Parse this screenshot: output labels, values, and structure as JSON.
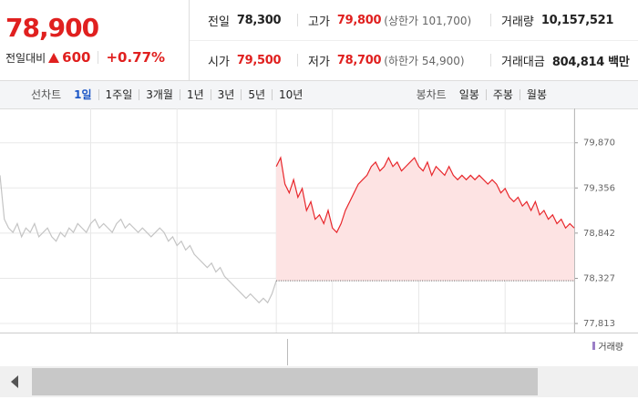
{
  "header": {
    "price": "78,900",
    "change_label": "전일대비",
    "change": "600",
    "change_rate": "+0.77%"
  },
  "summary": [
    {
      "label": "전일",
      "value": "78,300"
    },
    {
      "label": "고가",
      "value": "79,800",
      "note": "(상한가 101,700)"
    },
    {
      "label": "거래량",
      "value": "10,157,521"
    },
    {
      "label": "시가",
      "value": "79,500"
    },
    {
      "label": "저가",
      "value": "78,700",
      "note": "(하한가 54,900)"
    },
    {
      "label": "거래대금",
      "value": "804,814 백만"
    }
  ],
  "tabs": {
    "line_label": "선차트",
    "periods": [
      "1일",
      "1주일",
      "3개월",
      "1년",
      "3년",
      "5년",
      "10년"
    ],
    "candle_label": "봉차트",
    "candles": [
      "일봉",
      "주봉",
      "월봉"
    ]
  },
  "chart_data": {
    "type": "line",
    "xlim": [
      0,
      133
    ],
    "xticks": [
      21,
      41,
      64,
      77,
      97,
      117,
      133
    ],
    "ylim": [
      77741,
      80168
    ],
    "yticks": [
      {
        "value": 79870,
        "label": "79,870"
      },
      {
        "value": 79356,
        "label": "79,356"
      },
      {
        "value": 78842,
        "label": "78,842"
      },
      {
        "value": 78327,
        "label": "78,327"
      },
      {
        "value": 77813,
        "label": "77,813"
      }
    ],
    "grid": true,
    "baseline": 78300,
    "volume_label": "거래량",
    "series": [
      {
        "color": "#c4c4c4",
        "fill": false,
        "x": [
          0,
          1,
          2,
          3,
          4,
          5,
          6,
          7,
          8,
          9,
          10,
          11,
          12,
          13,
          14,
          15,
          16,
          17,
          18,
          19,
          20,
          21,
          22,
          23,
          24,
          25,
          26,
          27,
          28,
          29,
          30,
          31,
          32,
          33,
          34,
          35,
          36,
          37,
          38,
          39,
          40,
          41,
          42,
          43,
          44,
          45,
          46,
          47,
          48,
          49,
          50,
          51,
          52,
          53,
          54,
          55,
          56,
          57,
          58,
          59,
          60,
          61,
          62,
          63,
          64
        ],
        "values": [
          79500,
          79000,
          78900,
          78850,
          78950,
          78800,
          78900,
          78850,
          78950,
          78800,
          78850,
          78900,
          78800,
          78750,
          78850,
          78800,
          78900,
          78850,
          78950,
          78900,
          78850,
          78950,
          79000,
          78900,
          78950,
          78900,
          78850,
          78950,
          79000,
          78900,
          78950,
          78900,
          78850,
          78900,
          78850,
          78800,
          78850,
          78900,
          78850,
          78750,
          78800,
          78700,
          78750,
          78650,
          78700,
          78600,
          78550,
          78500,
          78450,
          78500,
          78400,
          78450,
          78350,
          78300,
          78250,
          78200,
          78150,
          78100,
          78150,
          78100,
          78050,
          78100,
          78050,
          78150,
          78300
        ]
      },
      {
        "color": "#e8262b",
        "fill": true,
        "x": [
          64,
          65,
          66,
          67,
          68,
          69,
          70,
          71,
          72,
          73,
          74,
          75,
          76,
          77,
          78,
          79,
          80,
          81,
          82,
          83,
          84,
          85,
          86,
          87,
          88,
          89,
          90,
          91,
          92,
          93,
          94,
          95,
          96,
          97,
          98,
          99,
          100,
          101,
          102,
          103,
          104,
          105,
          106,
          107,
          108,
          109,
          110,
          111,
          112,
          113,
          114,
          115,
          116,
          117,
          118,
          119,
          120,
          121,
          122,
          123,
          124,
          125,
          126,
          127,
          128,
          129,
          130,
          131,
          132,
          133
        ],
        "values": [
          79600,
          79700,
          79400,
          79300,
          79450,
          79250,
          79350,
          79100,
          79200,
          79000,
          79050,
          78950,
          79100,
          78900,
          78850,
          78950,
          79100,
          79200,
          79300,
          79400,
          79450,
          79500,
          79600,
          79650,
          79550,
          79600,
          79700,
          79600,
          79650,
          79550,
          79600,
          79650,
          79700,
          79600,
          79550,
          79650,
          79500,
          79600,
          79550,
          79500,
          79600,
          79500,
          79450,
          79500,
          79450,
          79500,
          79450,
          79500,
          79450,
          79400,
          79450,
          79400,
          79300,
          79350,
          79250,
          79200,
          79250,
          79150,
          79200,
          79100,
          79200,
          79050,
          79100,
          79000,
          79050,
          78950,
          79000,
          78900,
          78950,
          78900
        ]
      }
    ]
  }
}
